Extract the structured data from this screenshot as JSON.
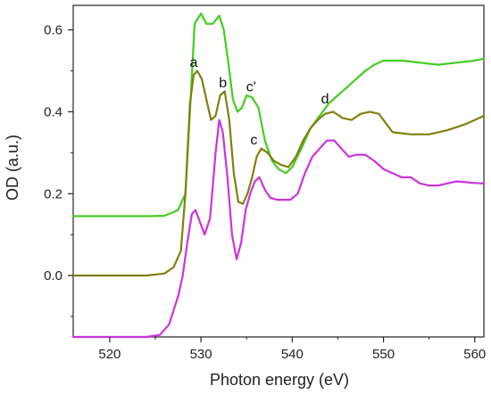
{
  "chart_data": {
    "type": "line",
    "title": "",
    "xlabel": "Photon energy (eV)",
    "ylabel": "OD (a.u.)",
    "xlim": [
      516,
      561
    ],
    "ylim": [
      -0.15,
      0.66
    ],
    "xticks": [
      520,
      530,
      540,
      550,
      560
    ],
    "yticks": [
      0.0,
      0.2,
      0.4,
      0.6
    ],
    "ytick_labels": [
      "0.0",
      "0.2",
      "0.4",
      "0.6"
    ],
    "grid": false,
    "series": [
      {
        "color": "#44cc22",
        "x": [
          516,
          520,
          524,
          526,
          527.5,
          528.3,
          528.8,
          529.3,
          530,
          530.6,
          531.3,
          532,
          532.5,
          533,
          533.5,
          534,
          534.5,
          535,
          535.6,
          536.3,
          537,
          537.8,
          538.5,
          539.3,
          540,
          541,
          542,
          543,
          544,
          545,
          546,
          547,
          548,
          549,
          550,
          552,
          554,
          556,
          558,
          560,
          561
        ],
        "y": [
          0.145,
          0.145,
          0.145,
          0.146,
          0.16,
          0.2,
          0.4,
          0.615,
          0.64,
          0.615,
          0.615,
          0.635,
          0.6,
          0.52,
          0.43,
          0.4,
          0.41,
          0.44,
          0.435,
          0.41,
          0.33,
          0.28,
          0.26,
          0.25,
          0.265,
          0.31,
          0.36,
          0.39,
          0.42,
          0.44,
          0.46,
          0.48,
          0.5,
          0.515,
          0.525,
          0.525,
          0.52,
          0.515,
          0.52,
          0.525,
          0.53
        ]
      },
      {
        "color": "#808010",
        "x": [
          516,
          520,
          524,
          526,
          527,
          527.8,
          528.3,
          528.8,
          529.2,
          529.6,
          530.1,
          530.6,
          531.1,
          531.6,
          532.1,
          532.6,
          533.1,
          533.6,
          534.1,
          534.6,
          535.1,
          535.6,
          536.1,
          536.6,
          537.3,
          538,
          538.8,
          539.6,
          540.4,
          541.2,
          542,
          542.8,
          543.6,
          544.5,
          545.5,
          546.5,
          547.5,
          548.5,
          549.5,
          551,
          553,
          555,
          557,
          559,
          561
        ],
        "y": [
          0.0,
          0.0,
          0.0,
          0.005,
          0.02,
          0.06,
          0.2,
          0.42,
          0.49,
          0.5,
          0.48,
          0.43,
          0.38,
          0.39,
          0.44,
          0.45,
          0.38,
          0.25,
          0.18,
          0.175,
          0.2,
          0.24,
          0.29,
          0.31,
          0.3,
          0.28,
          0.27,
          0.265,
          0.29,
          0.33,
          0.36,
          0.38,
          0.395,
          0.4,
          0.385,
          0.38,
          0.395,
          0.4,
          0.395,
          0.35,
          0.345,
          0.345,
          0.355,
          0.37,
          0.39
        ]
      },
      {
        "color": "#cc33dd",
        "x": [
          516,
          520,
          524,
          525.5,
          526.5,
          527.5,
          528,
          528.5,
          529,
          529.4,
          529.9,
          530.4,
          531,
          531.6,
          532,
          532.4,
          532.9,
          533.4,
          533.9,
          534.4,
          534.9,
          535.4,
          535.9,
          536.4,
          537,
          537.6,
          538.3,
          539,
          539.8,
          540.6,
          541.4,
          542.2,
          543,
          543.8,
          544.6,
          545.4,
          546.2,
          547,
          548,
          549,
          550,
          551,
          552,
          553,
          554,
          555,
          556,
          557,
          558,
          559,
          560,
          561
        ],
        "y": [
          -0.15,
          -0.15,
          -0.15,
          -0.145,
          -0.12,
          -0.05,
          0.0,
          0.08,
          0.15,
          0.16,
          0.13,
          0.1,
          0.14,
          0.3,
          0.38,
          0.35,
          0.24,
          0.1,
          0.04,
          0.08,
          0.16,
          0.2,
          0.23,
          0.24,
          0.21,
          0.19,
          0.185,
          0.185,
          0.185,
          0.2,
          0.25,
          0.29,
          0.31,
          0.33,
          0.33,
          0.31,
          0.29,
          0.295,
          0.295,
          0.28,
          0.26,
          0.25,
          0.24,
          0.24,
          0.225,
          0.22,
          0.22,
          0.225,
          0.23,
          0.228,
          0.226,
          0.225
        ]
      }
    ],
    "annotations": [
      {
        "text": "a",
        "x": 529.2,
        "y": 0.51
      },
      {
        "text": "b",
        "x": 532.4,
        "y": 0.46
      },
      {
        "text": "c'",
        "x": 535.5,
        "y": 0.45
      },
      {
        "text": "c",
        "x": 535.8,
        "y": 0.32
      },
      {
        "text": "d",
        "x": 543.6,
        "y": 0.42
      }
    ]
  }
}
